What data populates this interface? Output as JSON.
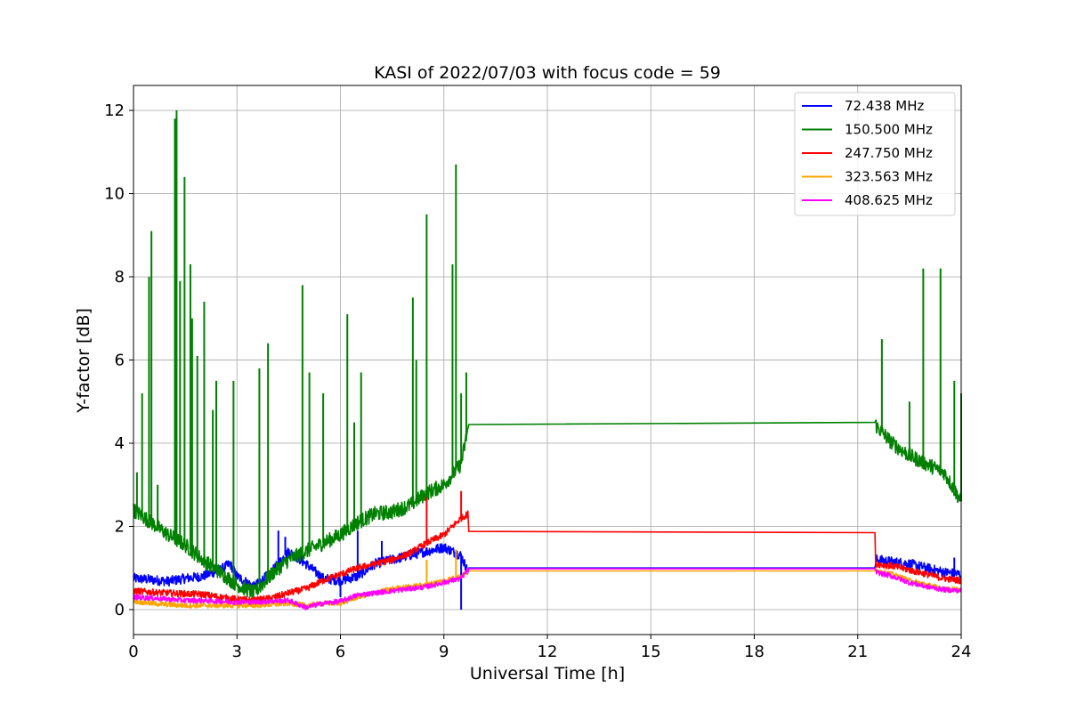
{
  "chart_data": {
    "type": "line",
    "title": "KASI of 2022/07/03 with focus code = 59",
    "xlabel": "Universal Time [h]",
    "ylabel": "Y-factor [dB]",
    "xlim": [
      0,
      24
    ],
    "ylim": [
      -0.6,
      12.6
    ],
    "xticks": [
      0,
      3,
      6,
      9,
      12,
      15,
      18,
      21,
      24
    ],
    "yticks": [
      0,
      2,
      4,
      6,
      8,
      10,
      12
    ],
    "grid": true,
    "legend_position": "top-right",
    "series": [
      {
        "name": "  72.438 MHz",
        "color": "#0000ff",
        "points": [
          [
            0,
            0.75
          ],
          [
            0.5,
            0.72
          ],
          [
            1,
            0.68
          ],
          [
            1.5,
            0.75
          ],
          [
            2,
            0.8
          ],
          [
            2.5,
            0.95
          ],
          [
            2.8,
            1.1
          ],
          [
            3,
            0.8
          ],
          [
            3.5,
            0.55
          ],
          [
            4,
            0.9
          ],
          [
            4.5,
            1.4
          ],
          [
            5,
            1.1
          ],
          [
            5.5,
            0.75
          ],
          [
            6,
            0.7
          ],
          [
            6.5,
            0.8
          ],
          [
            7,
            1.1
          ],
          [
            7.5,
            1.2
          ],
          [
            8,
            1.3
          ],
          [
            8.5,
            1.4
          ],
          [
            9,
            1.5
          ],
          [
            9.5,
            1.3
          ],
          [
            9.7,
            0.9
          ],
          [
            9.72,
            1.0
          ],
          [
            21.5,
            1.0
          ],
          [
            21.55,
            1.2
          ],
          [
            22,
            1.15
          ],
          [
            22.5,
            1.1
          ],
          [
            23,
            1.0
          ],
          [
            23.5,
            0.9
          ],
          [
            24,
            0.85
          ]
        ],
        "spikes": [
          [
            4.2,
            1.9
          ],
          [
            4.4,
            1.75
          ],
          [
            6.0,
            0.3
          ],
          [
            6.5,
            1.9
          ],
          [
            7.2,
            1.65
          ],
          [
            9.5,
            0.0
          ],
          [
            23.8,
            1.25
          ]
        ]
      },
      {
        "name": "150.500 MHz",
        "color": "#008000",
        "points": [
          [
            0,
            2.4
          ],
          [
            0.5,
            2.1
          ],
          [
            1,
            1.8
          ],
          [
            1.5,
            1.55
          ],
          [
            2,
            1.2
          ],
          [
            2.5,
            0.9
          ],
          [
            3,
            0.6
          ],
          [
            3.5,
            0.4
          ],
          [
            4,
            0.85
          ],
          [
            4.5,
            1.2
          ],
          [
            5,
            1.4
          ],
          [
            5.5,
            1.6
          ],
          [
            6,
            1.8
          ],
          [
            6.5,
            2.1
          ],
          [
            7,
            2.3
          ],
          [
            7.5,
            2.35
          ],
          [
            8,
            2.5
          ],
          [
            8.5,
            2.8
          ],
          [
            9,
            3.0
          ],
          [
            9.5,
            3.5
          ],
          [
            9.72,
            4.45
          ],
          [
            21.5,
            4.5
          ],
          [
            21.55,
            4.4
          ],
          [
            22,
            4.0
          ],
          [
            22.5,
            3.7
          ],
          [
            23,
            3.5
          ],
          [
            23.5,
            3.3
          ],
          [
            24,
            2.6
          ]
        ],
        "spikes": [
          [
            0.1,
            3.3
          ],
          [
            0.25,
            5.2
          ],
          [
            0.45,
            8.0
          ],
          [
            0.52,
            9.1
          ],
          [
            0.7,
            3.0
          ],
          [
            1.2,
            11.8
          ],
          [
            1.25,
            12.0
          ],
          [
            1.35,
            7.9
          ],
          [
            1.48,
            10.4
          ],
          [
            1.65,
            8.3
          ],
          [
            1.7,
            7.0
          ],
          [
            1.85,
            6.1
          ],
          [
            2.05,
            7.4
          ],
          [
            2.3,
            4.8
          ],
          [
            2.4,
            5.5
          ],
          [
            2.9,
            5.5
          ],
          [
            3.9,
            6.4
          ],
          [
            3.65,
            5.8
          ],
          [
            4.9,
            7.8
          ],
          [
            5.1,
            5.7
          ],
          [
            5.5,
            5.2
          ],
          [
            6.2,
            7.1
          ],
          [
            6.4,
            4.5
          ],
          [
            6.6,
            5.7
          ],
          [
            8.2,
            6.0
          ],
          [
            8.5,
            9.5
          ],
          [
            8.1,
            7.5
          ],
          [
            9.25,
            8.3
          ],
          [
            9.35,
            10.7
          ],
          [
            9.5,
            5.2
          ],
          [
            9.65,
            5.7
          ],
          [
            21.7,
            6.5
          ],
          [
            22.5,
            5.0
          ],
          [
            22.9,
            8.2
          ],
          [
            23.4,
            8.2
          ],
          [
            23.8,
            5.5
          ],
          [
            24,
            5.2
          ]
        ]
      },
      {
        "name": "247.750 MHz",
        "color": "#ff0000",
        "points": [
          [
            0,
            0.45
          ],
          [
            0.5,
            0.42
          ],
          [
            1,
            0.4
          ],
          [
            1.5,
            0.38
          ],
          [
            2,
            0.37
          ],
          [
            2.5,
            0.3
          ],
          [
            3,
            0.25
          ],
          [
            3.5,
            0.22
          ],
          [
            4,
            0.28
          ],
          [
            4.5,
            0.4
          ],
          [
            5,
            0.5
          ],
          [
            5.5,
            0.7
          ],
          [
            6,
            0.85
          ],
          [
            6.5,
            1.0
          ],
          [
            7,
            1.1
          ],
          [
            7.5,
            1.2
          ],
          [
            8,
            1.35
          ],
          [
            8.5,
            1.6
          ],
          [
            9,
            1.8
          ],
          [
            9.5,
            2.2
          ],
          [
            9.7,
            2.3
          ],
          [
            9.72,
            1.88
          ],
          [
            21.5,
            1.85
          ],
          [
            21.52,
            1.1
          ],
          [
            22,
            1.05
          ],
          [
            22.5,
            0.95
          ],
          [
            23,
            0.85
          ],
          [
            23.5,
            0.75
          ],
          [
            24,
            0.7
          ]
        ],
        "spikes": [
          [
            8.5,
            2.7
          ],
          [
            9.5,
            2.85
          ]
        ]
      },
      {
        "name": "323.563 MHz",
        "color": "#ffa500",
        "points": [
          [
            0,
            0.2
          ],
          [
            0.5,
            0.15
          ],
          [
            1,
            0.12
          ],
          [
            1.5,
            0.1
          ],
          [
            2,
            0.1
          ],
          [
            2.5,
            0.1
          ],
          [
            3,
            0.1
          ],
          [
            3.5,
            0.1
          ],
          [
            4,
            0.12
          ],
          [
            4.5,
            0.15
          ],
          [
            5,
            0.1
          ],
          [
            5.5,
            0.15
          ],
          [
            6,
            0.15
          ],
          [
            6.5,
            0.3
          ],
          [
            7,
            0.4
          ],
          [
            7.5,
            0.5
          ],
          [
            8,
            0.55
          ],
          [
            8.5,
            0.6
          ],
          [
            9,
            0.7
          ],
          [
            9.5,
            0.8
          ],
          [
            9.72,
            0.93
          ],
          [
            21.5,
            0.93
          ],
          [
            21.52,
            0.95
          ],
          [
            22,
            0.85
          ],
          [
            22.5,
            0.7
          ],
          [
            23,
            0.6
          ],
          [
            23.5,
            0.5
          ],
          [
            24,
            0.48
          ]
        ],
        "spikes": [
          [
            8.5,
            1.2
          ],
          [
            9.35,
            1.45
          ]
        ]
      },
      {
        "name": "408.625 MHz",
        "color": "#ff00ff",
        "points": [
          [
            0,
            0.3
          ],
          [
            0.5,
            0.28
          ],
          [
            1,
            0.25
          ],
          [
            1.5,
            0.22
          ],
          [
            2,
            0.22
          ],
          [
            2.5,
            0.2
          ],
          [
            3,
            0.18
          ],
          [
            3.5,
            0.18
          ],
          [
            4,
            0.2
          ],
          [
            4.5,
            0.22
          ],
          [
            5,
            0.05
          ],
          [
            5.5,
            0.15
          ],
          [
            6,
            0.2
          ],
          [
            6.5,
            0.35
          ],
          [
            7,
            0.4
          ],
          [
            7.5,
            0.45
          ],
          [
            8,
            0.5
          ],
          [
            8.5,
            0.55
          ],
          [
            9,
            0.65
          ],
          [
            9.5,
            0.75
          ],
          [
            9.72,
            0.98
          ],
          [
            21.5,
            0.98
          ],
          [
            21.52,
            0.9
          ],
          [
            22,
            0.8
          ],
          [
            22.5,
            0.65
          ],
          [
            23,
            0.55
          ],
          [
            23.5,
            0.48
          ],
          [
            24,
            0.45
          ]
        ],
        "spikes": []
      }
    ]
  }
}
